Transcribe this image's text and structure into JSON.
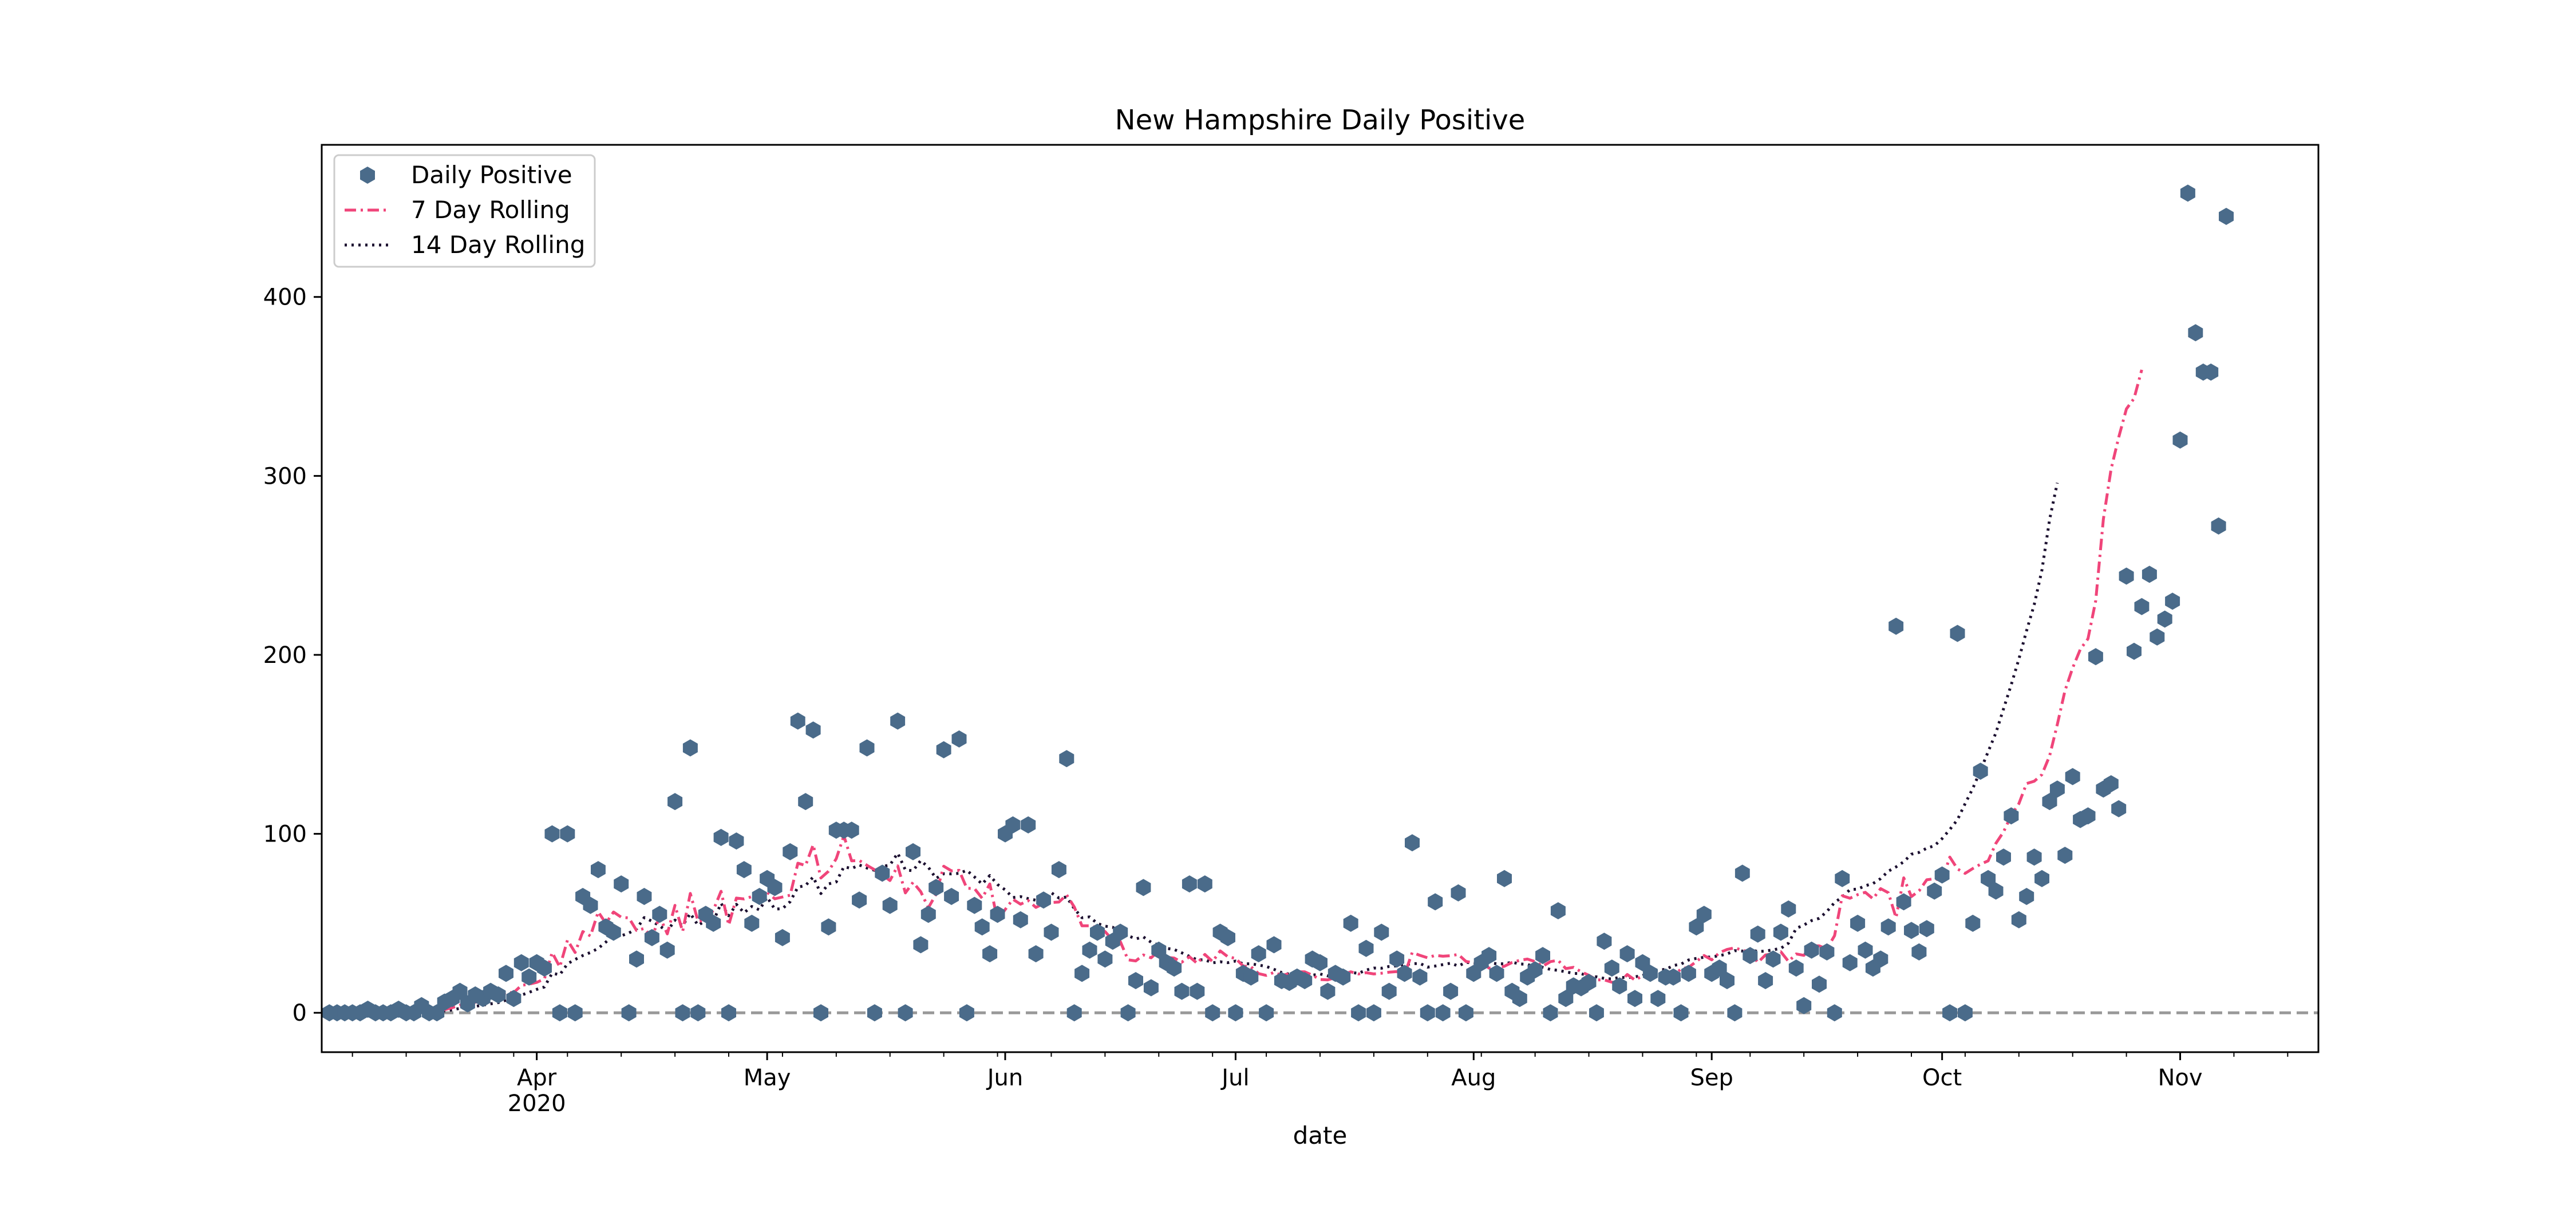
{
  "chart_data": {
    "type": "line",
    "title": "New Hampshire Daily Positive",
    "xlabel": "date",
    "ylabel": "",
    "xlim": [
      "2020-03-04",
      "2020-11-19"
    ],
    "ylim": [
      -22,
      485
    ],
    "xticks": [
      {
        "date": "2020-04-01",
        "label": "Apr",
        "sublabel": "2020"
      },
      {
        "date": "2020-05-01",
        "label": "May",
        "sublabel": ""
      },
      {
        "date": "2020-06-01",
        "label": "Jun",
        "sublabel": ""
      },
      {
        "date": "2020-07-01",
        "label": "Jul",
        "sublabel": ""
      },
      {
        "date": "2020-08-01",
        "label": "Aug",
        "sublabel": ""
      },
      {
        "date": "2020-09-01",
        "label": "Sep",
        "sublabel": ""
      },
      {
        "date": "2020-10-01",
        "label": "Oct",
        "sublabel": ""
      },
      {
        "date": "2020-11-01",
        "label": "Nov",
        "sublabel": ""
      }
    ],
    "yticks": [
      0,
      100,
      200,
      300,
      400
    ],
    "reference_line": {
      "y": 0,
      "style": "dashed",
      "color": "#999999"
    },
    "legend": {
      "position": "top-left",
      "entries": [
        "Daily Positive",
        "7 Day Rolling",
        "14 Day Rolling"
      ]
    },
    "colors": {
      "points": "#4a6b8a",
      "rolling7": "#f0457a",
      "rolling14": "#1c1030",
      "axes": "#000000"
    },
    "grid": false,
    "start_date": "2020-03-05",
    "series": [
      {
        "name": "Daily Positive",
        "style": "hexagon-markers",
        "values": [
          0,
          0,
          0,
          0,
          0,
          2,
          0,
          0,
          0,
          2,
          0,
          0,
          4,
          0,
          0,
          6,
          8,
          12,
          5,
          10,
          8,
          12,
          10,
          22,
          8,
          28,
          20,
          28,
          25,
          100,
          0,
          100,
          0,
          65,
          60,
          80,
          48,
          45,
          72,
          0,
          30,
          65,
          42,
          55,
          35,
          118,
          0,
          148,
          0,
          55,
          50,
          98,
          0,
          96,
          80,
          50,
          65,
          75,
          70,
          42,
          90,
          163,
          118,
          158,
          0,
          48,
          102,
          102,
          102,
          63,
          148,
          0,
          78,
          60,
          163,
          0,
          90,
          38,
          55,
          70,
          147,
          65,
          153,
          0,
          60,
          48,
          33,
          55,
          100,
          105,
          52,
          105,
          33,
          63,
          45,
          80,
          142,
          0,
          22,
          35,
          45,
          30,
          40,
          45,
          0,
          18,
          70,
          14,
          35,
          28,
          25,
          12,
          72,
          12,
          72,
          0,
          45,
          42,
          0,
          22,
          20,
          33,
          0,
          38,
          18,
          17,
          20,
          18,
          30,
          28,
          12,
          22,
          20,
          50,
          0,
          36,
          0,
          45,
          12,
          30,
          22,
          95,
          20,
          0,
          62,
          0,
          12,
          67,
          0,
          22,
          28,
          32,
          22,
          75,
          12,
          8,
          20,
          24,
          32,
          0,
          57,
          8,
          15,
          14,
          17,
          0,
          40,
          25,
          15,
          33,
          8,
          28,
          22,
          8,
          20,
          20,
          0,
          22,
          48,
          55,
          22,
          25,
          18,
          0,
          78,
          32,
          44,
          18,
          30,
          45,
          58,
          25,
          4,
          35,
          16,
          34,
          0,
          75,
          28,
          50,
          35,
          25,
          30,
          48,
          216,
          62,
          46,
          34,
          47,
          68,
          77,
          0,
          212,
          0,
          50,
          135,
          75,
          68,
          87,
          110,
          52,
          65,
          87,
          75,
          118,
          125,
          88,
          132,
          108,
          110,
          199,
          125,
          128,
          114,
          244,
          202,
          227,
          245,
          210,
          220,
          230,
          320,
          458,
          380,
          358,
          358,
          272,
          445
        ]
      },
      {
        "name": "7 Day Rolling",
        "style": "dash-dot",
        "values": [
          null,
          null,
          null,
          null,
          null,
          null,
          0.3,
          0.3,
          0.3,
          0.6,
          0.6,
          0.6,
          1.1,
          1.1,
          1.1,
          1.7,
          2.9,
          4.3,
          5.0,
          5.9,
          7.0,
          8.7,
          9.3,
          11.3,
          11.3,
          15.3,
          16.0,
          17.0,
          18.9,
          33.7,
          25.6,
          40.6,
          33.7,
          45.4,
          42.9,
          56.4,
          50.0,
          56.3,
          53.4,
          53.0,
          46.0,
          47.1,
          42.0,
          53.9,
          44.1,
          60.0,
          45.4,
          66.7,
          51.1,
          51.7,
          57.4,
          67.9,
          49.0,
          64.1,
          63.6,
          64.9,
          63.0,
          67.3,
          63.7,
          64.7,
          65.7,
          83.6,
          82.3,
          93.9,
          75.3,
          79.1,
          86.1,
          98.9,
          84.9,
          85.1,
          82.4,
          79.9,
          77.0,
          73.9,
          82.1,
          67.0,
          72.9,
          67.7,
          58.7,
          66.3,
          81.9,
          79.3,
          79.6,
          69.6,
          69.4,
          64.0,
          72.0,
          51.7,
          57.7,
          63.4,
          60.7,
          62.7,
          58.9,
          61.0,
          61.6,
          61.9,
          65.9,
          59.1,
          48.6,
          48.6,
          47.6,
          45.4,
          40.6,
          39.7,
          29.6,
          29.0,
          32.3,
          30.7,
          34.7,
          31.0,
          30.6,
          28.3,
          31.3,
          27.6,
          32.6,
          28.6,
          34.6,
          31.3,
          30.4,
          26.1,
          25.7,
          21.9,
          20.9,
          22.6,
          20.9,
          21.9,
          22.9,
          22.9,
          21.0,
          18.6,
          18.4,
          19.6,
          21.3,
          22.9,
          21.7,
          22.4,
          21.7,
          22.1,
          22.7,
          23.0,
          21.3,
          33.7,
          32.1,
          30.7,
          32.1,
          31.6,
          31.9,
          32.6,
          28.7,
          27.9,
          28.3,
          25.0,
          25.1,
          26.0,
          28.1,
          29.3,
          30.0,
          28.6,
          26.0,
          28.6,
          29.3,
          24.7,
          25.4,
          22.9,
          21.0,
          18.4,
          18.4,
          17.1,
          16.9,
          21.4,
          18.3,
          20.6,
          19.9,
          19.6,
          22.1,
          20.1,
          24.6,
          25.4,
          28.7,
          32.0,
          29.6,
          33.6,
          35.4,
          36.3,
          34.9,
          34.0,
          28.1,
          32.3,
          33.0,
          34.1,
          28.7,
          32.9,
          32.1,
          37.4,
          37.4,
          35.7,
          43.1,
          65.4,
          64.0,
          66.0,
          67.3,
          63.7,
          69.4,
          67.1,
          53.1,
          75.4,
          64.9,
          68.1,
          74.3,
          74.9,
          73.9,
          87.0,
          80.4,
          77.9,
          80.6,
          83.0,
          84.9,
          94.7,
          101.1,
          110.3,
          116.9,
          128.1,
          129.4,
          133.1,
          143.6,
          161.1,
          180.0,
          192.7,
          203.1,
          209.0,
          230.3,
          275.9,
          303.7,
          321.6,
          337.4,
          343.3,
          359.3
        ]
      },
      {
        "name": "14 Day Rolling",
        "style": "dotted",
        "values": [
          null,
          null,
          null,
          null,
          null,
          null,
          null,
          null,
          null,
          null,
          null,
          null,
          null,
          0.6,
          0.6,
          1.0,
          1.6,
          2.5,
          2.9,
          3.6,
          4.3,
          5.0,
          5.7,
          7.0,
          7.7,
          9.9,
          11.4,
          13.1,
          14.4,
          22.1,
          21.2,
          27.4,
          29.8,
          32.0,
          33.7,
          36.0,
          39.5,
          43.4,
          43.0,
          44.6,
          46.8,
          53.2,
          51.2,
          48.6,
          45.5,
          51.8,
          48.7,
          55.5,
          48.9,
          51.5,
          51.2,
          61.2,
          54.2,
          60.6,
          55.9,
          59.4,
          57.5,
          64.6,
          57.9,
          58.2,
          62.1,
          70.2,
          71.1,
          75.9,
          66.6,
          72.0,
          73.1,
          81.6,
          80.6,
          82.6,
          80.9,
          79.6,
          81.7,
          82.6,
          89.2,
          79.8,
          79.4,
          85.1,
          81.3,
          75.1,
          77.7,
          77.6,
          77.9,
          79.6,
          75.9,
          71.9,
          76.7,
          71.7,
          68.7,
          64.4,
          64.9,
          63.8,
          62.9,
          64.3,
          67.1,
          64.1,
          64.7,
          58.2,
          53.1,
          53.6,
          49.9,
          48.4,
          47.8,
          44.9,
          43.1,
          41.3,
          42.4,
          39.4,
          37.8,
          36.0,
          35.4,
          33.5,
          31.5,
          29.6,
          29.6,
          27.9,
          28.5,
          28.0,
          28.9,
          27.4,
          27.4,
          26.7,
          25.9,
          24.3,
          22.5,
          21.6,
          22.4,
          22.4,
          21.0,
          21.7,
          20.6,
          21.4,
          21.8,
          22.6,
          22.0,
          23.9,
          25.0,
          24.9,
          25.9,
          26.2,
          27.0,
          27.4,
          27.6,
          25.5,
          26.1,
          26.9,
          27.7,
          26.1,
          28.2,
          27.8,
          27.4,
          28.1,
          27.4,
          27.4,
          28.3,
          27.3,
          27.1,
          25.4,
          25.4,
          24.2,
          23.7,
          22.9,
          22.0,
          21.9,
          20.4,
          20.1,
          19.2,
          18.9,
          19.8,
          19.6,
          20.1,
          20.8,
          22.6,
          24.1,
          24.2,
          26.4,
          27.2,
          29.5,
          30.4,
          31.0,
          31.2,
          31.9,
          32.9,
          34.7,
          34.5,
          35.4,
          34.2,
          34.5,
          35.2,
          36.0,
          38.9,
          47.2,
          49.0,
          51.5,
          52.8,
          56.6,
          61.6,
          64.7,
          68.8,
          69.1,
          71.0,
          72.2,
          75.0,
          79.1,
          81.5,
          84.4,
          88.6,
          89.6,
          92.0,
          93.3,
          97.3,
          102.4,
          107.9,
          116.9,
          125.4,
          135.4,
          145.9,
          156.4,
          169.9,
          183.3,
          197.7,
          213.5,
          228.1,
          247.3,
          275.7,
          296.1
        ]
      }
    ]
  }
}
